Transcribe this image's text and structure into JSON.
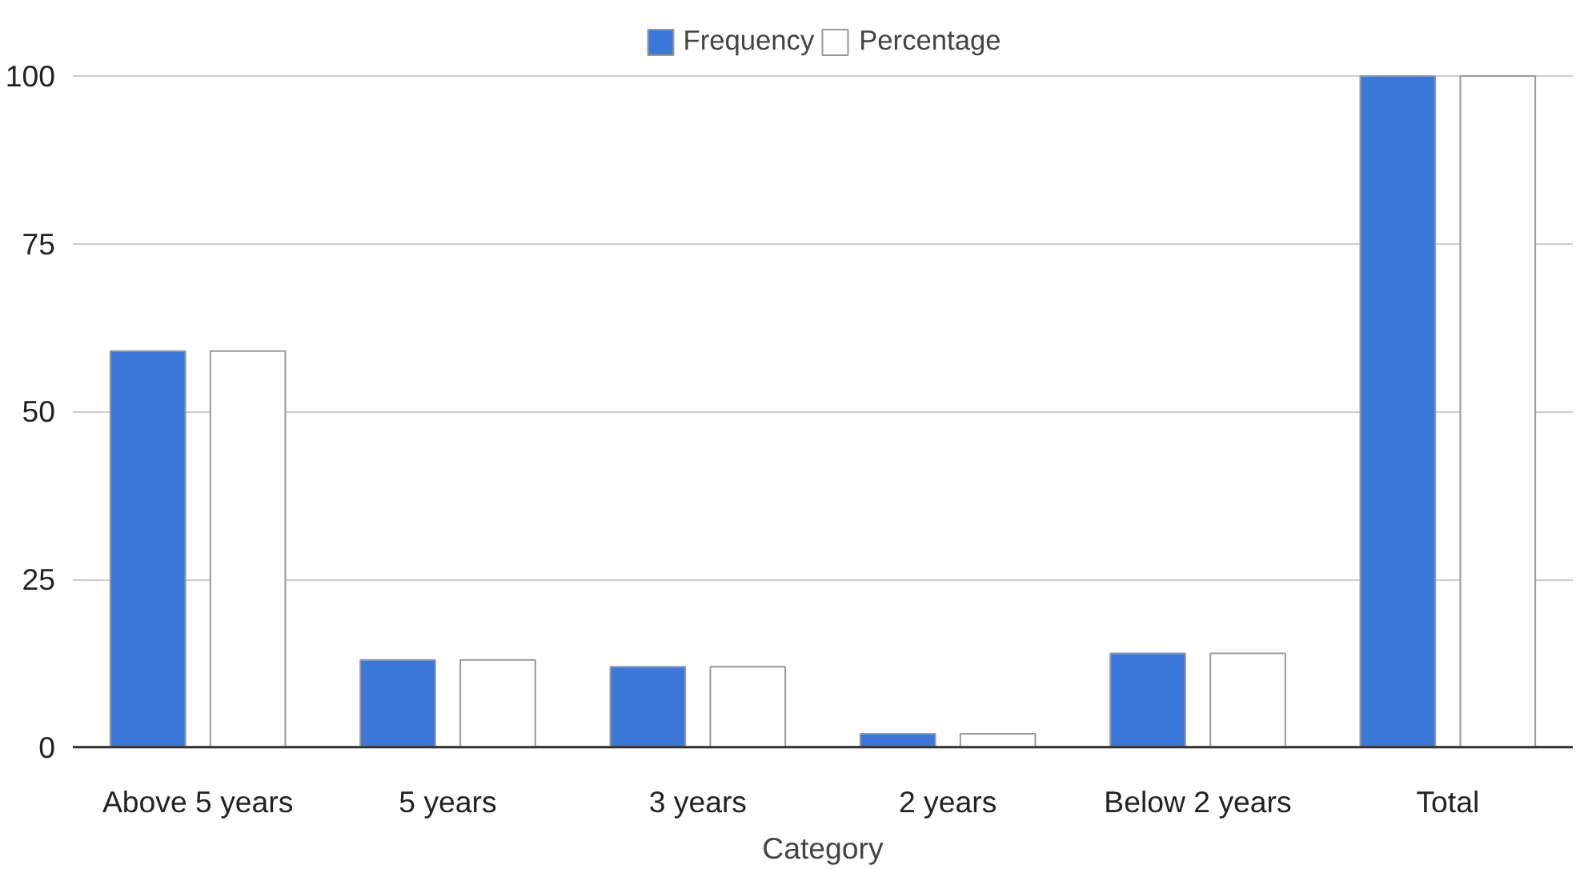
{
  "chart_data": {
    "type": "bar",
    "xlabel": "Category",
    "categories": [
      "Above 5 years",
      "5 years",
      "3 years",
      "2 years",
      "Below 2 years",
      "Total"
    ],
    "series": [
      {
        "name": "Frequency",
        "color": "#3c78d8",
        "values": [
          59,
          13,
          12,
          2,
          14,
          100
        ]
      },
      {
        "name": "Percentage",
        "color": "#ffffff",
        "values": [
          59,
          13,
          12,
          2,
          14,
          100
        ]
      }
    ],
    "ylim": [
      0,
      100
    ],
    "yticks": [
      0,
      25,
      50,
      75,
      100
    ],
    "grid": "y",
    "legend": "top"
  }
}
